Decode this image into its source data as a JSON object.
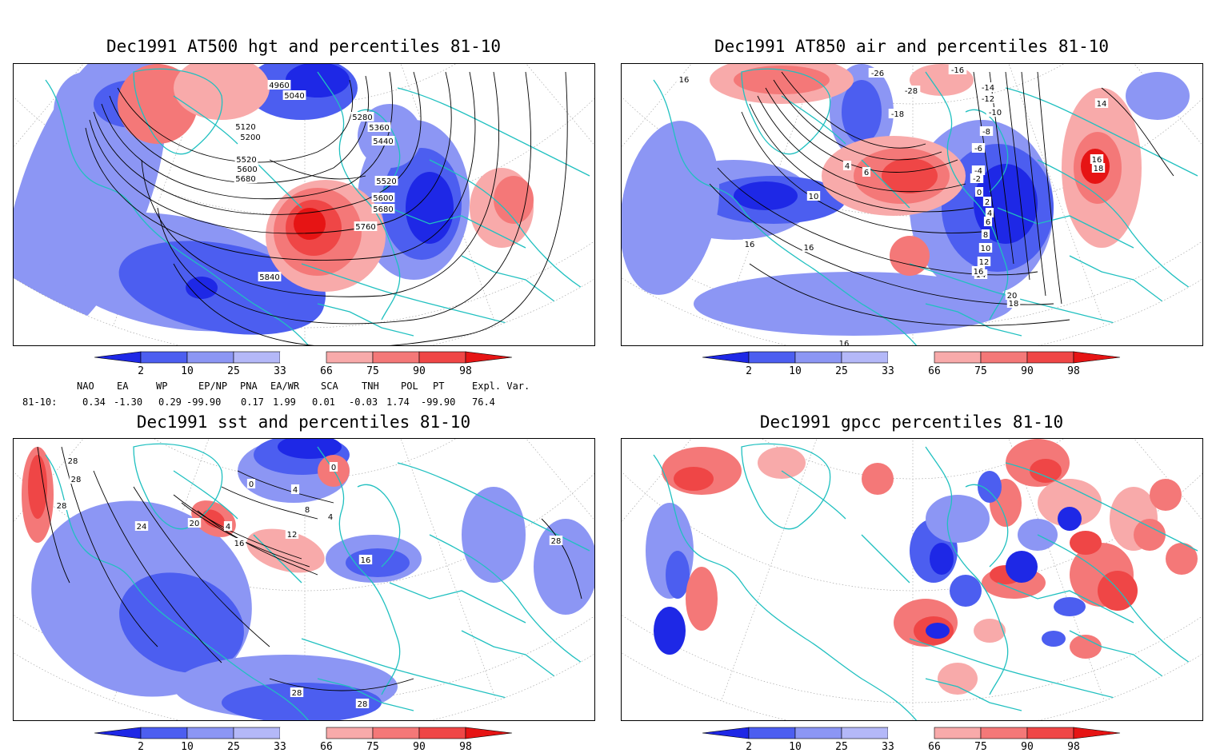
{
  "colors": {
    "land_outline": "#20c0c0",
    "blue_dark": "#1e28e6",
    "blue_mid": "#4c5ef0",
    "blue_light": "#8c96f4",
    "blue_pale": "#b4b8f8",
    "red_pale": "#f8aaaa",
    "red_light": "#f47878",
    "red_mid": "#ef4646",
    "red_dark": "#e61414",
    "contour": "#000000",
    "graticule": "#9a9a9a"
  },
  "colorbar_ticks": [
    "2",
    "10",
    "25",
    "33",
    "66",
    "75",
    "90",
    "98"
  ],
  "panels": [
    {
      "id": "hgt",
      "title": "Dec1991 AT500 hgt and percentiles 81-10",
      "contour_labels": [
        "4960",
        "5040",
        "5120",
        "5200",
        "5280",
        "5360",
        "5440",
        "5520",
        "5600",
        "5680",
        "5520",
        "5600",
        "5680",
        "5760",
        "5840"
      ]
    },
    {
      "id": "air",
      "title": "Dec1991 AT850 air and percentiles 81-10",
      "contour_labels": [
        "-26",
        "-16",
        "-14",
        "-12",
        "-10",
        "-8",
        "-6",
        "-4",
        "-2",
        "0",
        "2",
        "4",
        "6",
        "8",
        "10",
        "12",
        "14",
        "16",
        "18",
        "20",
        "16",
        "16",
        "16",
        "14",
        "16",
        "18",
        "-28",
        "-18",
        "10",
        "6",
        "4",
        "16"
      ]
    },
    {
      "id": "sst",
      "title": "Dec1991 sst and percentiles 81-10",
      "contour_labels": [
        "28",
        "28",
        "28",
        "24",
        "20",
        "4",
        "0",
        "4",
        "8",
        "12",
        "16",
        "16",
        "0",
        "4",
        "28",
        "28",
        "28"
      ]
    },
    {
      "id": "gpcc",
      "title": "Dec1991 gpcc percentiles 81-10",
      "contour_labels": []
    }
  ],
  "indices": {
    "headers": [
      "NAO",
      "EA",
      "WP",
      "EP/NP",
      "PNA",
      "EA/WR",
      "SCA",
      "TNH",
      "POL",
      "PT",
      "Expl. Var."
    ],
    "row_label": "81-10:",
    "values": [
      "0.34",
      "-1.30",
      "0.29",
      "-99.90",
      "0.17",
      "1.99",
      "0.01",
      "-0.03",
      "1.74",
      "-99.90",
      "76.4"
    ]
  }
}
